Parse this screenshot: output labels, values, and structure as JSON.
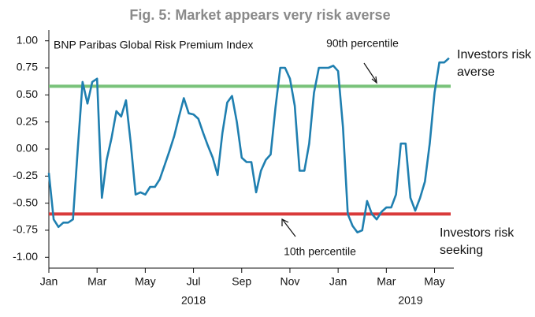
{
  "chart_data": {
    "type": "line",
    "title": "Fig. 5: Market appears very risk averse",
    "annotations": [
      "BNP Paribas Global Risk Premium Index",
      "Investors risk averse",
      "Investors risk seeking"
    ],
    "reference_lines": [
      {
        "label": "90th percentile",
        "value": 0.58,
        "color": "#79c27a"
      },
      {
        "label": "10th percentile",
        "value": -0.6,
        "color": "#d93a3a"
      }
    ],
    "years": [
      "2018",
      "2019"
    ],
    "x": [
      0,
      0.2,
      0.4,
      0.6,
      0.8,
      1,
      1.2,
      1.4,
      1.6,
      1.8,
      2,
      2.2,
      2.4,
      2.6,
      2.8,
      3,
      3.2,
      3.4,
      3.6,
      3.8,
      4,
      4.2,
      4.4,
      4.6,
      4.8,
      5,
      5.2,
      5.4,
      5.6,
      5.8,
      6,
      6.2,
      6.4,
      6.6,
      6.8,
      7,
      7.2,
      7.4,
      7.6,
      7.8,
      8,
      8.2,
      8.4,
      8.6,
      8.8,
      9,
      9.2,
      9.4,
      9.6,
      9.8,
      10,
      10.2,
      10.4,
      10.6,
      10.8,
      11,
      11.2,
      11.4,
      11.6,
      11.8,
      12,
      12.2,
      12.4,
      12.6,
      12.8,
      13,
      13.2,
      13.4,
      13.6,
      13.8,
      14,
      14.2,
      14.4,
      14.6,
      14.8,
      15,
      15.2,
      15.4,
      15.6,
      15.8,
      16,
      16.2,
      16.4,
      16.6
    ],
    "series": [
      {
        "name": "BNP Paribas Global Risk Premium Index",
        "color": "#1f7fb0",
        "values": [
          -0.22,
          -0.65,
          -0.72,
          -0.68,
          -0.68,
          -0.65,
          0.0,
          0.62,
          0.42,
          0.62,
          0.65,
          -0.45,
          -0.1,
          0.1,
          0.35,
          0.3,
          0.45,
          0.05,
          -0.42,
          -0.4,
          -0.42,
          -0.35,
          -0.35,
          -0.28,
          -0.15,
          -0.02,
          0.12,
          0.3,
          0.47,
          0.33,
          0.32,
          0.28,
          0.15,
          0.03,
          -0.08,
          -0.24,
          0.15,
          0.43,
          0.49,
          0.25,
          -0.08,
          -0.12,
          -0.12,
          -0.4,
          -0.2,
          -0.1,
          -0.05,
          0.38,
          0.75,
          0.75,
          0.65,
          0.4,
          -0.2,
          -0.2,
          0.05,
          0.52,
          0.75,
          0.75,
          0.75,
          0.77,
          0.72,
          0.2,
          -0.6,
          -0.71,
          -0.77,
          -0.75,
          -0.48,
          -0.6,
          -0.65,
          -0.58,
          -0.54,
          -0.54,
          -0.42,
          0.05,
          0.05,
          -0.45,
          -0.57,
          -0.45,
          -0.3,
          0.05,
          0.52,
          0.8,
          0.8,
          0.84
        ]
      }
    ],
    "xlim": [
      0,
      16.8
    ],
    "xticks": [
      {
        "value": 0,
        "label": "Jan"
      },
      {
        "value": 2,
        "label": "Mar"
      },
      {
        "value": 4,
        "label": "May"
      },
      {
        "value": 6,
        "label": "Jul"
      },
      {
        "value": 8,
        "label": "Sep"
      },
      {
        "value": 10,
        "label": "Nov"
      },
      {
        "value": 12,
        "label": "Jan"
      },
      {
        "value": 14,
        "label": "Mar"
      },
      {
        "value": 16,
        "label": "May"
      }
    ],
    "ylim": [
      -1.1,
      1.1
    ],
    "yticks": [
      {
        "value": 1,
        "label": "1.00"
      },
      {
        "value": 0.75,
        "label": "0.75"
      },
      {
        "value": 0.5,
        "label": "0.50"
      },
      {
        "value": 0.25,
        "label": "0.25"
      },
      {
        "value": 0,
        "label": "0.00"
      },
      {
        "value": -0.25,
        "label": "-0.25"
      },
      {
        "value": -0.5,
        "label": "-0.50"
      },
      {
        "value": -0.75,
        "label": "-0.75"
      },
      {
        "value": -1,
        "label": "-1.00"
      }
    ],
    "grid": false
  }
}
